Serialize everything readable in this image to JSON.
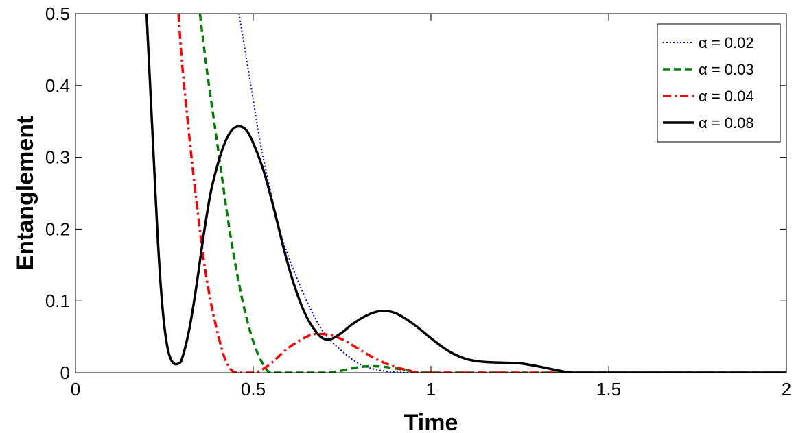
{
  "chart_data": {
    "type": "line",
    "title": "",
    "xlabel": "Time",
    "ylabel": "Entanglement",
    "xlim": [
      0,
      2
    ],
    "ylim": [
      0,
      0.5
    ],
    "xticks": [
      0,
      0.5,
      1,
      1.5,
      2
    ],
    "xtick_labels": [
      "0",
      "0.5",
      "1",
      "1.5",
      "2"
    ],
    "yticks": [
      0,
      0.1,
      0.2,
      0.3,
      0.4,
      0.5
    ],
    "ytick_labels": [
      "0",
      "0.1",
      "0.2",
      "0.3",
      "0.4",
      "0.5"
    ],
    "grid": false,
    "legend_position": "top-right",
    "series": [
      {
        "name": "α = 0.02",
        "color": "#0000ff",
        "style": "dotted",
        "points": [
          [
            0.46,
            0.5
          ],
          [
            0.48,
            0.44
          ],
          [
            0.5,
            0.38
          ],
          [
            0.52,
            0.32
          ],
          [
            0.55,
            0.25
          ],
          [
            0.58,
            0.19
          ],
          [
            0.62,
            0.135
          ],
          [
            0.66,
            0.09
          ],
          [
            0.7,
            0.055
          ],
          [
            0.75,
            0.03
          ],
          [
            0.8,
            0.012
          ],
          [
            0.85,
            0.004
          ],
          [
            0.9,
            0.001
          ],
          [
            1.0,
            0.0
          ],
          [
            1.5,
            0.0
          ],
          [
            2.0,
            0.0
          ]
        ]
      },
      {
        "name": "α = 0.03",
        "color": "#007f00",
        "style": "dashed",
        "points": [
          [
            0.35,
            0.5
          ],
          [
            0.37,
            0.42
          ],
          [
            0.39,
            0.35
          ],
          [
            0.41,
            0.28
          ],
          [
            0.43,
            0.21
          ],
          [
            0.45,
            0.15
          ],
          [
            0.47,
            0.1
          ],
          [
            0.49,
            0.06
          ],
          [
            0.51,
            0.03
          ],
          [
            0.53,
            0.01
          ],
          [
            0.55,
            0.0
          ],
          [
            0.6,
            0.0
          ],
          [
            0.7,
            0.0
          ],
          [
            0.75,
            0.003
          ],
          [
            0.8,
            0.008
          ],
          [
            0.85,
            0.009
          ],
          [
            0.9,
            0.006
          ],
          [
            0.95,
            0.002
          ],
          [
            1.0,
            0.0
          ],
          [
            1.5,
            0.0
          ],
          [
            2.0,
            0.0
          ]
        ]
      },
      {
        "name": "α = 0.04",
        "color": "#ff0000",
        "style": "dashdot",
        "points": [
          [
            0.29,
            0.5
          ],
          [
            0.3,
            0.43
          ],
          [
            0.32,
            0.33
          ],
          [
            0.34,
            0.24
          ],
          [
            0.36,
            0.16
          ],
          [
            0.38,
            0.1
          ],
          [
            0.4,
            0.055
          ],
          [
            0.42,
            0.02
          ],
          [
            0.44,
            0.003
          ],
          [
            0.46,
            0.0
          ],
          [
            0.5,
            0.0
          ],
          [
            0.52,
            0.003
          ],
          [
            0.55,
            0.013
          ],
          [
            0.6,
            0.035
          ],
          [
            0.65,
            0.05
          ],
          [
            0.68,
            0.054
          ],
          [
            0.72,
            0.052
          ],
          [
            0.76,
            0.044
          ],
          [
            0.8,
            0.032
          ],
          [
            0.85,
            0.018
          ],
          [
            0.9,
            0.008
          ],
          [
            0.95,
            0.002
          ],
          [
            1.0,
            0.0
          ],
          [
            1.5,
            0.0
          ],
          [
            2.0,
            0.0
          ]
        ]
      },
      {
        "name": "α = 0.08",
        "color": "#000000",
        "style": "solid",
        "points": [
          [
            0.2,
            0.5
          ],
          [
            0.21,
            0.4
          ],
          [
            0.22,
            0.3
          ],
          [
            0.23,
            0.2
          ],
          [
            0.24,
            0.12
          ],
          [
            0.25,
            0.065
          ],
          [
            0.26,
            0.032
          ],
          [
            0.27,
            0.017
          ],
          [
            0.28,
            0.012
          ],
          [
            0.29,
            0.013
          ],
          [
            0.3,
            0.02
          ],
          [
            0.32,
            0.06
          ],
          [
            0.34,
            0.12
          ],
          [
            0.36,
            0.19
          ],
          [
            0.38,
            0.25
          ],
          [
            0.4,
            0.29
          ],
          [
            0.42,
            0.32
          ],
          [
            0.44,
            0.338
          ],
          [
            0.46,
            0.343
          ],
          [
            0.48,
            0.338
          ],
          [
            0.5,
            0.32
          ],
          [
            0.53,
            0.28
          ],
          [
            0.56,
            0.225
          ],
          [
            0.59,
            0.165
          ],
          [
            0.62,
            0.115
          ],
          [
            0.65,
            0.078
          ],
          [
            0.68,
            0.055
          ],
          [
            0.7,
            0.047
          ],
          [
            0.72,
            0.047
          ],
          [
            0.75,
            0.056
          ],
          [
            0.78,
            0.068
          ],
          [
            0.82,
            0.08
          ],
          [
            0.86,
            0.086
          ],
          [
            0.9,
            0.083
          ],
          [
            0.95,
            0.068
          ],
          [
            1.0,
            0.048
          ],
          [
            1.05,
            0.03
          ],
          [
            1.1,
            0.019
          ],
          [
            1.15,
            0.015
          ],
          [
            1.2,
            0.014
          ],
          [
            1.25,
            0.013
          ],
          [
            1.3,
            0.009
          ],
          [
            1.35,
            0.004
          ],
          [
            1.4,
            0.0
          ],
          [
            1.5,
            0.0
          ],
          [
            2.0,
            0.0
          ]
        ]
      }
    ]
  }
}
